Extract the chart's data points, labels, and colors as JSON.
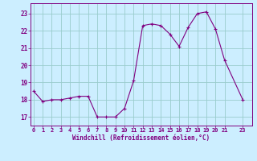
{
  "x": [
    0,
    1,
    2,
    3,
    4,
    5,
    6,
    7,
    8,
    9,
    10,
    11,
    12,
    13,
    14,
    15,
    16,
    17,
    18,
    19,
    20,
    21,
    23
  ],
  "y": [
    18.5,
    17.9,
    18.0,
    18.0,
    18.1,
    18.2,
    18.2,
    17.0,
    17.0,
    17.0,
    17.5,
    19.1,
    22.3,
    22.4,
    22.3,
    21.8,
    21.1,
    22.2,
    23.0,
    23.1,
    22.1,
    20.3,
    18.0
  ],
  "line_color": "#800080",
  "marker_color": "#800080",
  "bg_color": "#cceeff",
  "grid_color": "#99cccc",
  "tick_label_color": "#800080",
  "xlabel": "Windchill (Refroidissement éolien,°C)",
  "xlabel_color": "#800080",
  "ylim": [
    16.5,
    23.6
  ],
  "yticks": [
    17,
    18,
    19,
    20,
    21,
    22,
    23
  ],
  "xticks": [
    0,
    1,
    2,
    3,
    4,
    5,
    6,
    7,
    8,
    9,
    10,
    11,
    12,
    13,
    14,
    15,
    16,
    17,
    18,
    19,
    20,
    21,
    23
  ],
  "xtick_labels": [
    "0",
    "1",
    "2",
    "3",
    "4",
    "5",
    "6",
    "7",
    "8",
    "9",
    "10",
    "11",
    "12",
    "13",
    "14",
    "15",
    "16",
    "17",
    "18",
    "19",
    "20",
    "21",
    "23"
  ],
  "xlim": [
    -0.3,
    24.0
  ]
}
